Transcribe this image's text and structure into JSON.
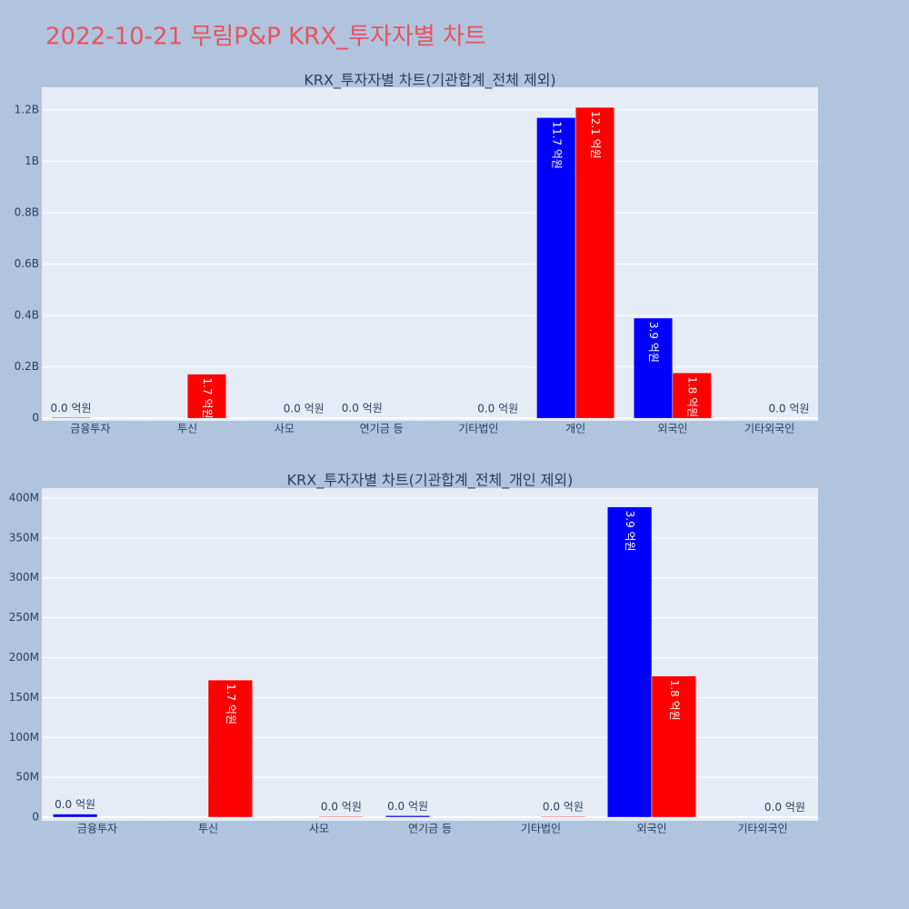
{
  "title": "2022-10-21 무림P&P KRX_투자자별 차트",
  "chart_data": [
    {
      "type": "bar",
      "title": "KRX_투자자별 차트(기관합계_전체 제외)",
      "categories": [
        "금융투자",
        "투신",
        "사모",
        "연기금 등",
        "기타법인",
        "개인",
        "외국인",
        "기타외국인"
      ],
      "series": [
        {
          "color": "#0000ff",
          "values": [
            3000000,
            0,
            0,
            1500000,
            0,
            1170000000,
            390000000,
            0
          ],
          "value_labels": [
            "0.0 억원",
            null,
            null,
            "0.0 억원",
            null,
            "11.7 억원",
            "3.9 억원",
            null
          ]
        },
        {
          "color": "#ff0000",
          "values": [
            0,
            172000000,
            1000000,
            0,
            1000000,
            1210000000,
            177000000,
            500000
          ],
          "value_labels": [
            null,
            "1.7 억원",
            "0.0 억원",
            null,
            "0.0 억원",
            "12.1 억원",
            "1.8 억원",
            "0.0 억원"
          ]
        }
      ],
      "ylim": [
        -10000000,
        1288000000
      ],
      "yticks": [
        0,
        {
          "value": 200000000,
          "label": "0.2B"
        },
        {
          "value": 400000000,
          "label": "0.4B"
        },
        {
          "value": 600000000,
          "label": "0.6B"
        },
        {
          "value": 800000000,
          "label": "0.8B"
        },
        {
          "value": 1000000000,
          "label": "1B"
        },
        {
          "value": 1200000000,
          "label": "1.2B"
        }
      ],
      "grid": true
    },
    {
      "type": "bar",
      "title": "KRX_투자자별 차트(기관합계_전체_개인 제외)",
      "categories": [
        "금융투자",
        "투신",
        "사모",
        "연기금 등",
        "기타법인",
        "외국인",
        "기타외국인"
      ],
      "series": [
        {
          "color": "#0000ff",
          "values": [
            4000000,
            0,
            0,
            2000000,
            0,
            389000000,
            0
          ],
          "value_labels": [
            "0.0 억원",
            null,
            null,
            "0.0 억원",
            null,
            "3.9 억원",
            null
          ]
        },
        {
          "color": "#ff0000",
          "values": [
            0,
            172000000,
            1000000,
            0,
            1000000,
            177000000,
            500000
          ],
          "value_labels": [
            null,
            "1.7 억원",
            "0.0 억원",
            null,
            "0.0 억원",
            "1.8 억원",
            "0.0 억원"
          ]
        }
      ],
      "ylim": [
        -4500000,
        412500000
      ],
      "yticks": [
        0,
        {
          "value": 50000000,
          "label": "50M"
        },
        {
          "value": 100000000,
          "label": "100M"
        },
        {
          "value": 150000000,
          "label": "150M"
        },
        {
          "value": 200000000,
          "label": "200M"
        },
        {
          "value": 250000000,
          "label": "250M"
        },
        {
          "value": 300000000,
          "label": "300M"
        },
        {
          "value": 350000000,
          "label": "350M"
        },
        {
          "value": 400000000,
          "label": "400M"
        }
      ],
      "grid": true
    }
  ]
}
